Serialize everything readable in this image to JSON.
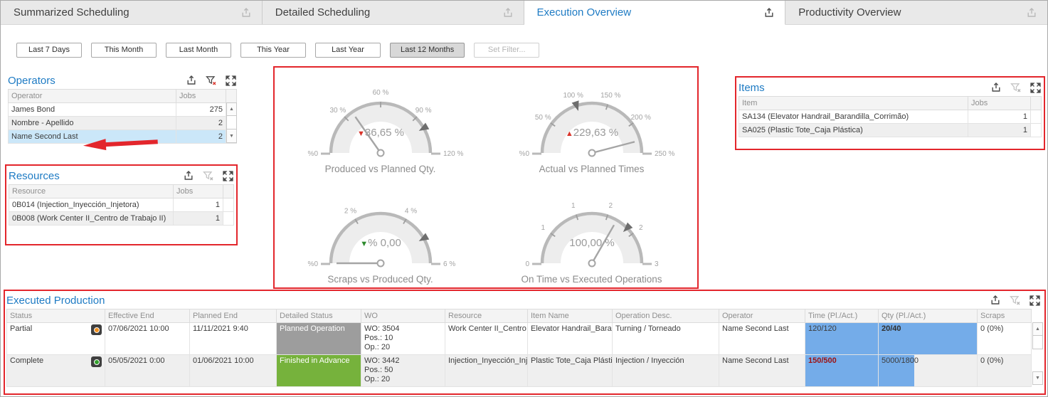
{
  "colors": {
    "accent_blue": "#1e7bc4",
    "annotation_red": "#e3262c",
    "selection_blue": "#cbe7f9",
    "databar_blue": "#74ACE9",
    "status_orange": "#f2901d",
    "status_green": "#33a02c",
    "detailed_status_gray": "#9d9d9d",
    "detailed_status_green": "#76b23c",
    "bold_red_text": "#9c1111",
    "trend_red": "#d9342b",
    "trend_green": "#2e8b2e"
  },
  "icons": {
    "export": "tray-arrow-up",
    "clear_filter": "funnel-with-x",
    "expand": "arrows-out-fullscreen",
    "scroll_up": "▲",
    "scroll_down": "▼"
  },
  "tabs": [
    {
      "label": "Summarized Scheduling",
      "active": false
    },
    {
      "label": "Detailed Scheduling",
      "active": false
    },
    {
      "label": "Execution Overview",
      "active": true
    },
    {
      "label": "Productivity Overview",
      "active": false
    }
  ],
  "filters": {
    "buttons": [
      {
        "label": "Last 7 Days",
        "state": "normal"
      },
      {
        "label": "This Month",
        "state": "normal"
      },
      {
        "label": "Last Month",
        "state": "normal"
      },
      {
        "label": "This Year",
        "state": "normal"
      },
      {
        "label": "Last Year",
        "state": "normal"
      },
      {
        "label": "Last 12 Months",
        "state": "selected"
      },
      {
        "label": "Set Filter...",
        "state": "disabled"
      }
    ]
  },
  "panels": {
    "operators": {
      "title": "Operators",
      "columns": [
        "Operator",
        "Jobs"
      ],
      "rows": [
        {
          "label": "James  Bond",
          "jobs": "275",
          "selected": false
        },
        {
          "label": "Nombre - Apellido",
          "jobs": "2",
          "selected": false
        },
        {
          "label": "Name Second Last",
          "jobs": "2",
          "selected": true
        }
      ]
    },
    "resources": {
      "title": "Resources",
      "columns": [
        "Resource",
        "Jobs"
      ],
      "rows": [
        {
          "label": "0B014 (Injection_Inyección_Injetora)",
          "jobs": "1",
          "selected": false
        },
        {
          "label": "0B008 (Work Center II_Centro de Trabajo II)",
          "jobs": "1",
          "selected": false
        }
      ]
    },
    "items": {
      "title": "Items",
      "columns": [
        "Item",
        "Jobs"
      ],
      "rows": [
        {
          "label": "SA134 (Elevator Handrail_Barandilla_Corrimão)",
          "jobs": "1",
          "selected": false
        },
        {
          "label": "SA025 (Plastic Tote_Caja Plástica)",
          "jobs": "1",
          "selected": false
        }
      ]
    },
    "executed_production": {
      "title": "Executed Production",
      "columns": [
        "Status",
        "Effective End",
        "Planned End",
        "Detailed Status",
        "WO",
        "Resource",
        "Item Name",
        "Operation Desc.",
        "Operator",
        "Time (Pl./Act.)",
        "Qty (Pl./Act.)",
        "Scraps"
      ],
      "rows": [
        {
          "status": "Partial",
          "status_dot": "#f2901d",
          "effective_end": "07/06/2021 10:00",
          "planned_end": "11/11/2021 9:40",
          "detailed_status": "Planned Operation",
          "detailed_status_bg": "#9d9d9d",
          "wo_lines": [
            "WO: 3504",
            "Pos.: 10",
            "Op.: 20"
          ],
          "resource": "Work Center II_Centro de Trabajo II",
          "item_name": "Elevator Handrail_Barandilla_Corrimão",
          "operation": "Turning / Torneado",
          "operator": "Name Second Last",
          "time": {
            "text": "120/120",
            "bar_pct": 100,
            "style": "normal"
          },
          "qty": {
            "text": "20/40",
            "bar_pct": 100,
            "style": "bold"
          },
          "scraps": "0 (0%)"
        },
        {
          "status": "Complete",
          "status_dot": "#33a02c",
          "effective_end": "05/05/2021 0:00",
          "planned_end": "01/06/2021 10:00",
          "detailed_status": "Finished in Advance",
          "detailed_status_bg": "#76b23c",
          "wo_lines": [
            "WO: 3442",
            "Pos.: 50",
            "Op.: 20"
          ],
          "resource": "Injection_Inyección_Injetora",
          "item_name": "Plastic Tote_Caja Plástica",
          "operation": "Injection / Inyección",
          "operator": "Name Second Last",
          "time": {
            "text": "150/500",
            "bar_pct": 100,
            "style": "bold-red"
          },
          "qty": {
            "text": "5000/1800",
            "bar_pct": 36,
            "style": "normal"
          },
          "scraps": "0 (0%)"
        }
      ]
    }
  },
  "chart_data": [
    {
      "type": "gauge",
      "title": "Produced vs Planned Qty.",
      "value": 36.65,
      "value_label": "36,65 %",
      "trend": "down",
      "trend_color": "#d9342b",
      "min": 0,
      "max": 120,
      "min_label": "%0",
      "max_label": "120 %",
      "ticks": [
        {
          "pos": 30,
          "label": "30 %"
        },
        {
          "pos": 60,
          "label": "60 %"
        },
        {
          "pos": 90,
          "label": "90 %"
        }
      ],
      "marker": 100
    },
    {
      "type": "gauge",
      "title": "Actual vs Planned Times",
      "value": 229.63,
      "value_label": "229,63 %",
      "trend": "up",
      "trend_color": "#d9342b",
      "min": 0,
      "max": 250,
      "min_label": "%0",
      "max_label": "250 %",
      "ticks": [
        {
          "pos": 50,
          "label": "50 %"
        },
        {
          "pos": 100,
          "label": "100 %"
        },
        {
          "pos": 150,
          "label": "150 %"
        },
        {
          "pos": 200,
          "label": "200 %"
        }
      ],
      "marker": 100
    },
    {
      "type": "gauge",
      "title": "Scraps vs Produced Qty.",
      "value": 0.0,
      "value_label": "% 0,00",
      "trend": "down",
      "trend_color": "#2e8b2e",
      "min": 0,
      "max": 6,
      "min_label": "%0",
      "max_label": "6 %",
      "ticks": [
        {
          "pos": 2,
          "label": "2 %"
        },
        {
          "pos": 4,
          "label": "4 %"
        }
      ],
      "marker": 5
    },
    {
      "type": "gauge",
      "title": "On Time vs Executed Operations",
      "value": 2,
      "value_label": "100,00 %",
      "trend": "none",
      "trend_color": "",
      "min": 0,
      "max": 3,
      "min_label": "0",
      "max_label": "3",
      "ticks": [
        {
          "pos": 0.6,
          "label": "1"
        },
        {
          "pos": 1.2,
          "label": "1"
        },
        {
          "pos": 1.8,
          "label": "2"
        },
        {
          "pos": 2.4,
          "label": "2"
        }
      ],
      "marker": 2.25
    }
  ]
}
